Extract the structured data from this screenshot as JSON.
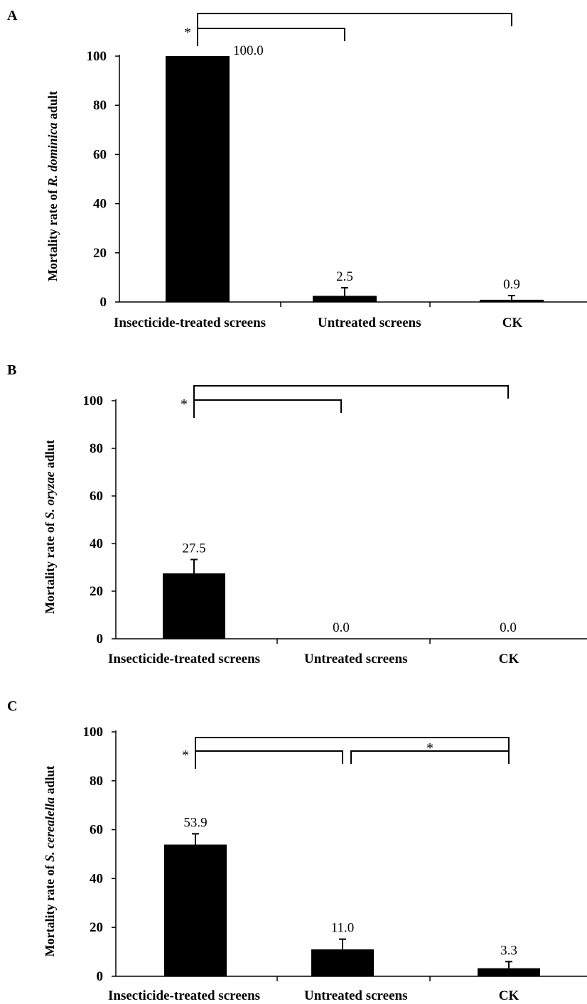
{
  "chart_data": [
    {
      "type": "bar",
      "panel": "A",
      "ylabel_parts": [
        {
          "text": "Mortality rate of ",
          "italic": false
        },
        {
          "text": "R. dominica",
          "italic": true
        },
        {
          "text": " adult",
          "italic": false
        }
      ],
      "categories": [
        "Insecticide-treated screens",
        "Untreated screens",
        "CK"
      ],
      "values": [
        100.0,
        2.5,
        0.9
      ],
      "value_labels": [
        "100.0",
        "2.5",
        "0.9"
      ],
      "error_upper": [
        100.0,
        5.8,
        2.6
      ],
      "ylim": [
        0,
        100
      ],
      "yticks": [
        0,
        20,
        40,
        60,
        80,
        100
      ],
      "significance": [
        {
          "from": 0,
          "to": 1,
          "label": "*",
          "level": 1
        },
        {
          "from": 0,
          "to": 2,
          "label": "",
          "level": 2
        }
      ]
    },
    {
      "type": "bar",
      "panel": "B",
      "ylabel_parts": [
        {
          "text": "Mortality rate of ",
          "italic": false
        },
        {
          "text": "S. oryzae",
          "italic": true
        },
        {
          "text": " adlut",
          "italic": false
        }
      ],
      "categories": [
        "Insecticide-treated screens",
        "Untreated screens",
        "CK"
      ],
      "values": [
        27.5,
        0.0,
        0.0
      ],
      "value_labels": [
        "27.5",
        "0.0",
        "0.0"
      ],
      "error_upper": [
        33.3,
        0.0,
        0.0
      ],
      "ylim": [
        0,
        100
      ],
      "yticks": [
        0,
        20,
        40,
        60,
        80,
        100
      ],
      "significance": [
        {
          "from": 0,
          "to": 1,
          "label": "*",
          "level": 1
        },
        {
          "from": 0,
          "to": 2,
          "label": "",
          "level": 2
        }
      ]
    },
    {
      "type": "bar",
      "panel": "C",
      "ylabel_parts": [
        {
          "text": "Mortality rate of ",
          "italic": false
        },
        {
          "text": "S. cerealella",
          "italic": true
        },
        {
          "text": " adlut",
          "italic": false
        }
      ],
      "categories": [
        "Insecticide-treated screens",
        "Untreated screens",
        "CK"
      ],
      "values": [
        53.9,
        11.0,
        3.3
      ],
      "value_labels": [
        "53.9",
        "11.0",
        "3.3"
      ],
      "error_upper": [
        58.3,
        15.2,
        6.0
      ],
      "ylim": [
        0,
        100
      ],
      "yticks": [
        0,
        20,
        40,
        60,
        80,
        100
      ],
      "significance": [
        {
          "from": 0,
          "to": 1,
          "label": "*",
          "level": 1
        },
        {
          "from": 1,
          "to": 2,
          "label": "*",
          "level": 1
        },
        {
          "from": 0,
          "to": 2,
          "label": "",
          "level": 2
        }
      ]
    }
  ]
}
